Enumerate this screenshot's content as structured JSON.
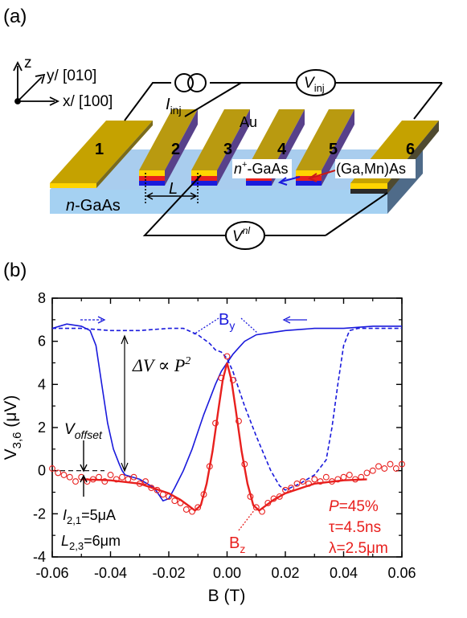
{
  "panel_a": {
    "label": "(a)",
    "axes": {
      "z": "z",
      "y": "y/ [010]",
      "x": "x/ [100]"
    },
    "contacts": [
      "1",
      "2",
      "3",
      "4",
      "5",
      "6"
    ],
    "labels": {
      "i_inj_I": "I",
      "i_inj_sub": "inj",
      "v_inj_V": "V",
      "v_inj_sub": "inj",
      "v_nl_V": "V",
      "v_nl_sup": "nl",
      "au": "Au",
      "n_plus_a": "n",
      "n_plus_sup": "+",
      "n_plus_b": "-GaAs",
      "gamnas": "(Ga,Mn)As",
      "length": "L",
      "ngaas_n": "n",
      "ngaas_rest": "-GaAs"
    }
  },
  "panel_b": {
    "label": "(b)",
    "annotations": {
      "by": "B",
      "by_sub": "y",
      "bz": "B",
      "bz_sub": "z",
      "delta_v": "ΔV ∝ P",
      "delta_v_sup": "2",
      "voffset": "V",
      "voffset_sub": "offset",
      "i21": "I",
      "i21_sub": "2,1",
      "i21_val": "=5μA",
      "l23": "L",
      "l23_sub": "2,3",
      "l23_val": "=6μm",
      "p": "P",
      "p_val": "=45%",
      "tau": "τ=4.5ns",
      "lambda": "λ=2.5μm"
    },
    "colors": {
      "by": "#1a1adc",
      "bz": "#e8201e"
    }
  },
  "chart_data": {
    "type": "line",
    "xlabel": "B (T)",
    "ylabel": "V",
    "ylabel_sub": "3,6",
    "ylabel_unit": " (μV)",
    "xlim": [
      -0.06,
      0.06
    ],
    "ylim": [
      -4,
      8
    ],
    "xticks": [
      "-0.06",
      "-0.04",
      "-0.02",
      "0.00",
      "0.02",
      "0.04",
      "0.06"
    ],
    "xtick_values": [
      -0.06,
      -0.04,
      -0.02,
      0.0,
      0.02,
      0.04,
      0.06
    ],
    "yticks": [
      "-4",
      "-2",
      "0",
      "2",
      "4",
      "6",
      "8"
    ],
    "ytick_values": [
      -4,
      -2,
      0,
      2,
      4,
      6,
      8
    ],
    "series": [
      {
        "style": "solid-blue",
        "x": [
          -0.06,
          -0.055,
          -0.05,
          -0.047,
          -0.045,
          -0.043,
          -0.041,
          -0.039,
          -0.037,
          -0.036,
          -0.035,
          -0.03,
          -0.025,
          -0.022,
          -0.02,
          -0.018,
          -0.015,
          -0.012,
          -0.01,
          -0.008,
          -0.006,
          -0.004,
          -0.002,
          0.0,
          0.002,
          0.004,
          0.006,
          0.01,
          0.015,
          0.02,
          0.03,
          0.04,
          0.05,
          0.06
        ],
        "y": [
          6.6,
          6.8,
          6.7,
          6.5,
          5.8,
          4.0,
          2.2,
          1.0,
          0.3,
          0.0,
          -0.2,
          -0.4,
          -0.8,
          -1.4,
          -1.3,
          -0.8,
          0.0,
          1.0,
          1.8,
          2.6,
          3.3,
          4.0,
          4.6,
          5.0,
          5.4,
          5.7,
          6.0,
          6.3,
          6.4,
          6.5,
          6.6,
          6.6,
          6.7,
          6.7
        ]
      },
      {
        "style": "dashed-blue",
        "x": [
          -0.06,
          -0.05,
          -0.04,
          -0.03,
          -0.02,
          -0.015,
          -0.01,
          -0.006,
          -0.004,
          -0.002,
          0.0,
          0.002,
          0.004,
          0.006,
          0.01,
          0.015,
          0.018,
          0.02,
          0.025,
          0.03,
          0.034,
          0.036,
          0.038,
          0.04,
          0.042,
          0.045,
          0.05,
          0.06
        ],
        "y": [
          6.6,
          6.6,
          6.5,
          6.5,
          6.6,
          6.6,
          6.3,
          5.9,
          5.6,
          5.5,
          5.2,
          4.6,
          3.8,
          3.0,
          1.6,
          0.0,
          -0.7,
          -0.9,
          -0.6,
          -0.2,
          0.5,
          2.0,
          4.0,
          5.8,
          6.5,
          6.6,
          6.6,
          6.6
        ]
      },
      {
        "style": "fit-red",
        "x": [
          -0.05,
          -0.04,
          -0.03,
          -0.02,
          -0.016,
          -0.013,
          -0.011,
          -0.009,
          -0.007,
          -0.005,
          -0.003,
          -0.0015,
          0.0,
          0.0015,
          0.003,
          0.005,
          0.007,
          0.009,
          0.011,
          0.013,
          0.016,
          0.02,
          0.03,
          0.04,
          0.048
        ],
        "y": [
          -0.4,
          -0.45,
          -0.6,
          -1.05,
          -1.35,
          -1.65,
          -1.85,
          -1.6,
          -0.6,
          0.9,
          2.8,
          4.2,
          5.0,
          4.2,
          2.8,
          0.9,
          -0.6,
          -1.6,
          -1.85,
          -1.65,
          -1.35,
          -1.05,
          -0.6,
          -0.45,
          -0.4
        ]
      },
      {
        "style": "markers-red",
        "x": [
          -0.06,
          -0.058,
          -0.056,
          -0.054,
          -0.052,
          -0.05,
          -0.048,
          -0.046,
          -0.044,
          -0.042,
          -0.04,
          -0.038,
          -0.036,
          -0.034,
          -0.032,
          -0.03,
          -0.028,
          -0.026,
          -0.024,
          -0.022,
          -0.02,
          -0.018,
          -0.016,
          -0.014,
          -0.012,
          -0.01,
          -0.008,
          -0.006,
          -0.004,
          -0.002,
          0.0,
          0.002,
          0.004,
          0.006,
          0.008,
          0.01,
          0.012,
          0.014,
          0.016,
          0.018,
          0.02,
          0.022,
          0.024,
          0.026,
          0.028,
          0.03,
          0.032,
          0.034,
          0.036,
          0.038,
          0.04,
          0.042,
          0.044,
          0.046,
          0.048,
          0.05,
          0.052,
          0.054,
          0.056,
          0.058,
          0.06
        ],
        "y": [
          0.1,
          -0.1,
          -0.2,
          -0.3,
          -0.5,
          -0.3,
          -0.5,
          -0.4,
          -0.3,
          -0.5,
          -0.2,
          -0.4,
          -0.3,
          -0.4,
          -0.3,
          -0.6,
          -0.5,
          -0.8,
          -0.9,
          -1.1,
          -1.2,
          -1.4,
          -1.5,
          -1.8,
          -1.9,
          -1.7,
          -1.1,
          0.2,
          2.2,
          4.3,
          5.3,
          4.2,
          2.3,
          0.3,
          -1.2,
          -1.7,
          -1.9,
          -1.5,
          -1.3,
          -1.2,
          -0.9,
          -0.8,
          -0.6,
          -0.5,
          -0.6,
          -0.4,
          -0.5,
          -0.3,
          -0.5,
          -0.4,
          -0.3,
          -0.2,
          -0.4,
          -0.3,
          -0.1,
          0.0,
          0.2,
          0.1,
          0.3,
          0.1,
          0.3
        ]
      }
    ]
  }
}
